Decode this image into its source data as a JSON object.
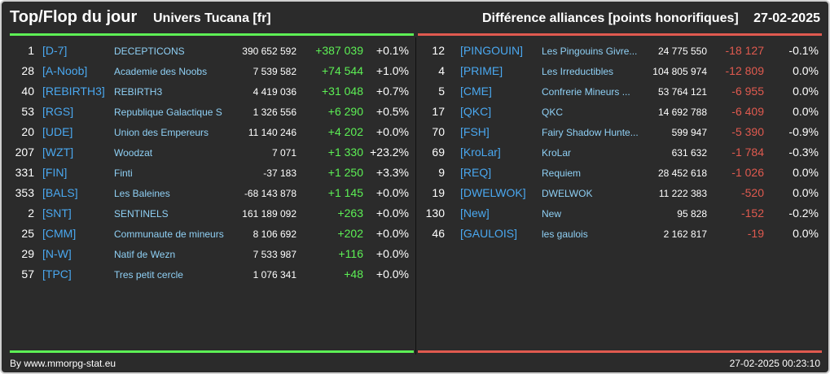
{
  "header": {
    "title": "Top/Flop du jour",
    "universe": "Univers Tucana [fr]",
    "subject": "Différence alliances [points honorifiques]",
    "date": "27-02-2025"
  },
  "colors": {
    "positive": "#5df055",
    "negative": "#e05a4f",
    "tag": "#4aa8f0",
    "name": "#8fd0f5"
  },
  "top": [
    {
      "rank": "1",
      "tag": "[D-7]",
      "name": "DECEPTICONS",
      "points": "390 652 592",
      "diff": "+387 039",
      "pct": "+0.1%"
    },
    {
      "rank": "28",
      "tag": "[A-Noob]",
      "name": "Academie des Noobs",
      "points": "7 539 582",
      "diff": "+74 544",
      "pct": "+1.0%"
    },
    {
      "rank": "40",
      "tag": "[REBIRTH3]",
      "name": "REBIRTH3",
      "points": "4 419 036",
      "diff": "+31 048",
      "pct": "+0.7%"
    },
    {
      "rank": "53",
      "tag": "[RGS]",
      "name": "Republique Galactique S",
      "points": "1 326 556",
      "diff": "+6 290",
      "pct": "+0.5%"
    },
    {
      "rank": "20",
      "tag": "[UDE]",
      "name": "Union des Empereurs",
      "points": "11 140 246",
      "diff": "+4 202",
      "pct": "+0.0%"
    },
    {
      "rank": "207",
      "tag": "[WZT]",
      "name": "Woodzat",
      "points": "7 071",
      "diff": "+1 330",
      "pct": "+23.2%"
    },
    {
      "rank": "331",
      "tag": "[FIN]",
      "name": "Finti",
      "points": "-37 183",
      "diff": "+1 250",
      "pct": "+3.3%"
    },
    {
      "rank": "353",
      "tag": "[BALS]",
      "name": "Les Baleines",
      "points": "-68 143 878",
      "diff": "+1 145",
      "pct": "+0.0%"
    },
    {
      "rank": "2",
      "tag": "[SNT]",
      "name": "SENTINELS",
      "points": "161 189 092",
      "diff": "+263",
      "pct": "+0.0%"
    },
    {
      "rank": "25",
      "tag": "[CMM]",
      "name": "Communaute de mineurs",
      "points": "8 106 692",
      "diff": "+202",
      "pct": "+0.0%"
    },
    {
      "rank": "29",
      "tag": "[N-W]",
      "name": "Natif de Wezn",
      "points": "7 533 987",
      "diff": "+116",
      "pct": "+0.0%"
    },
    {
      "rank": "57",
      "tag": "[TPC]",
      "name": "Tres petit cercle",
      "points": "1 076 341",
      "diff": "+48",
      "pct": "+0.0%"
    }
  ],
  "flop": [
    {
      "rank": "12",
      "tag": "[PINGOUIN]",
      "name": "Les Pingouins Givre...",
      "points": "24 775 550",
      "diff": "-18 127",
      "pct": "-0.1%"
    },
    {
      "rank": "4",
      "tag": "[PRIME]",
      "name": "Les Irreductibles",
      "points": "104 805 974",
      "diff": "-12 809",
      "pct": "0.0%"
    },
    {
      "rank": "5",
      "tag": "[CME]",
      "name": "Confrerie Mineurs ...",
      "points": "53 764 121",
      "diff": "-6 955",
      "pct": "0.0%"
    },
    {
      "rank": "17",
      "tag": "[QKC]",
      "name": "QKC",
      "points": "14 692 788",
      "diff": "-6 409",
      "pct": "0.0%"
    },
    {
      "rank": "70",
      "tag": "[FSH]",
      "name": "Fairy Shadow Hunte...",
      "points": "599 947",
      "diff": "-5 390",
      "pct": "-0.9%"
    },
    {
      "rank": "69",
      "tag": "[KroLar]",
      "name": "KroLar",
      "points": "631 632",
      "diff": "-1 784",
      "pct": "-0.3%"
    },
    {
      "rank": "9",
      "tag": "[REQ]",
      "name": "Requiem",
      "points": "28 452 618",
      "diff": "-1 026",
      "pct": "0.0%"
    },
    {
      "rank": "19",
      "tag": "[DWELWOK]",
      "name": "DWELWOK",
      "points": "11 222 383",
      "diff": "-520",
      "pct": "0.0%"
    },
    {
      "rank": "130",
      "tag": "[New]",
      "name": "New",
      "points": "95 828",
      "diff": "-152",
      "pct": "-0.2%"
    },
    {
      "rank": "46",
      "tag": "[GAULOIS]",
      "name": "les gaulois",
      "points": "2 162 817",
      "diff": "-19",
      "pct": "0.0%"
    }
  ],
  "footer": {
    "credit": "By www.mmorpg-stat.eu",
    "timestamp": "27-02-2025 00:23:10"
  }
}
